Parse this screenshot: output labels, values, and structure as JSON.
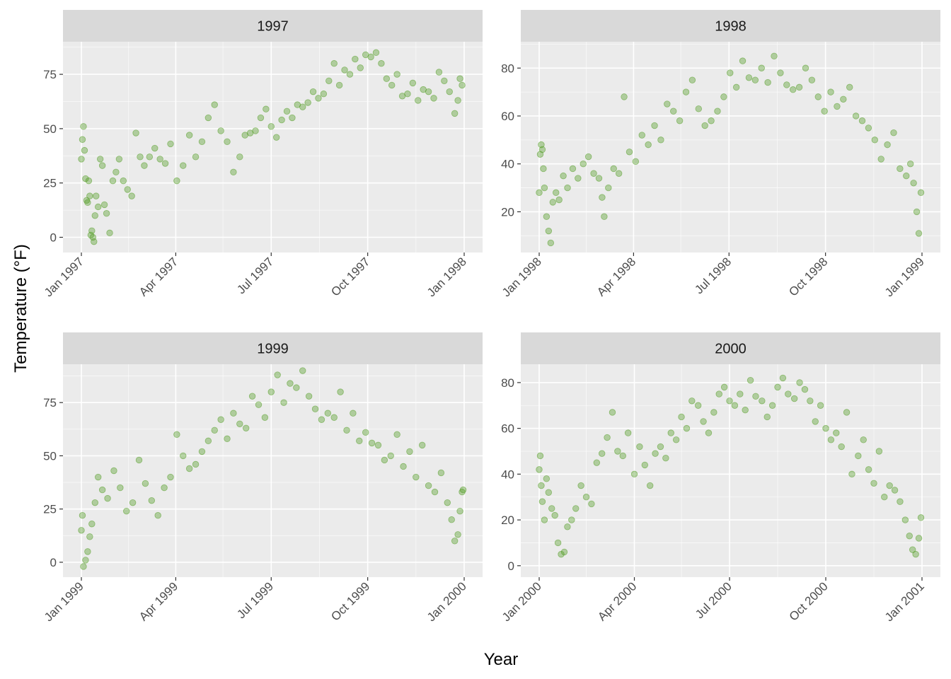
{
  "labels": {
    "x_title": "Year",
    "y_title": "Temperature (°F)"
  },
  "colors": {
    "point": "#4f9a1f",
    "panel": "#ebebeb",
    "strip": "#d9d9d9",
    "grid": "#ffffff"
  },
  "chart_data": [
    {
      "type": "scatter",
      "title": "1997",
      "xlabel": "Year",
      "ylabel": "Temperature (°F)",
      "xlim": [
        "1997-01-01",
        "1998-01-01"
      ],
      "x_ticks": [
        "1997-01-01",
        "1997-04-01",
        "1997-07-01",
        "1997-10-01",
        "1998-01-01"
      ],
      "x_tick_labels": [
        "Jan 1997",
        "Apr 1997",
        "Jul 1997",
        "Oct 1997",
        "Jan 1998"
      ],
      "ylim": [
        -7,
        90
      ],
      "y_ticks": [
        0,
        25,
        50,
        75
      ],
      "grid": true,
      "series": [
        {
          "x": [
            "1997-01-01",
            "1997-01-02",
            "1997-01-03",
            "1997-01-04",
            "1997-01-05",
            "1997-01-06",
            "1997-01-07",
            "1997-01-08",
            "1997-01-09",
            "1997-01-10",
            "1997-01-11",
            "1997-01-12",
            "1997-01-13",
            "1997-01-14",
            "1997-01-15",
            "1997-01-17",
            "1997-01-19",
            "1997-01-21",
            "1997-01-23",
            "1997-01-25",
            "1997-01-28",
            "1997-01-31",
            "1997-02-03",
            "1997-02-06",
            "1997-02-10",
            "1997-02-14",
            "1997-02-18",
            "1997-02-22",
            "1997-02-26",
            "1997-03-02",
            "1997-03-07",
            "1997-03-12",
            "1997-03-17",
            "1997-03-22",
            "1997-03-27",
            "1997-04-02",
            "1997-04-08",
            "1997-04-14",
            "1997-04-20",
            "1997-04-26",
            "1997-05-02",
            "1997-05-08",
            "1997-05-14",
            "1997-05-20",
            "1997-05-26",
            "1997-06-01",
            "1997-06-06",
            "1997-06-11",
            "1997-06-16",
            "1997-06-21",
            "1997-06-26",
            "1997-07-01",
            "1997-07-06",
            "1997-07-11",
            "1997-07-16",
            "1997-07-21",
            "1997-07-26",
            "1997-07-31",
            "1997-08-05",
            "1997-08-10",
            "1997-08-15",
            "1997-08-20",
            "1997-08-25",
            "1997-08-30",
            "1997-09-04",
            "1997-09-09",
            "1997-09-14",
            "1997-09-19",
            "1997-09-24",
            "1997-09-29",
            "1997-10-04",
            "1997-10-09",
            "1997-10-14",
            "1997-10-19",
            "1997-10-24",
            "1997-10-29",
            "1997-11-03",
            "1997-11-08",
            "1997-11-13",
            "1997-11-18",
            "1997-11-23",
            "1997-11-28",
            "1997-12-03",
            "1997-12-08",
            "1997-12-13",
            "1997-12-18",
            "1997-12-23",
            "1997-12-26",
            "1997-12-28",
            "1997-12-30"
          ],
          "y": [
            36,
            45,
            51,
            40,
            27,
            17,
            16,
            26,
            19,
            1,
            3,
            0,
            -2,
            10,
            19,
            14,
            36,
            33,
            15,
            11,
            2,
            26,
            30,
            36,
            26,
            22,
            19,
            48,
            37,
            33,
            37,
            41,
            36,
            34,
            43,
            26,
            33,
            47,
            37,
            44,
            55,
            61,
            49,
            44,
            30,
            37,
            47,
            48,
            49,
            55,
            59,
            51,
            46,
            54,
            58,
            55,
            61,
            60,
            62,
            67,
            64,
            66,
            72,
            80,
            70,
            77,
            75,
            82,
            78,
            84,
            83,
            85,
            80,
            73,
            70,
            75,
            65,
            66,
            71,
            63,
            68,
            67,
            64,
            76,
            72,
            67,
            57,
            63,
            73,
            70
          ]
        }
      ]
    },
    {
      "type": "scatter",
      "title": "1998",
      "xlabel": "Year",
      "ylabel": "Temperature (°F)",
      "xlim": [
        "1998-01-01",
        "1999-01-01"
      ],
      "x_ticks": [
        "1998-01-01",
        "1998-04-01",
        "1998-07-01",
        "1998-10-01",
        "1999-01-01"
      ],
      "x_tick_labels": [
        "Jan 1998",
        "Apr 1998",
        "Jul 1998",
        "Oct 1998",
        "Jan 1999"
      ],
      "ylim": [
        3,
        91
      ],
      "y_ticks": [
        20,
        40,
        60,
        80
      ],
      "grid": true,
      "series": [
        {
          "x": [
            "1998-01-01",
            "1998-01-02",
            "1998-01-03",
            "1998-01-04",
            "1998-01-05",
            "1998-01-06",
            "1998-01-08",
            "1998-01-10",
            "1998-01-12",
            "1998-01-14",
            "1998-01-17",
            "1998-01-20",
            "1998-01-24",
            "1998-01-28",
            "1998-02-02",
            "1998-02-07",
            "1998-02-12",
            "1998-02-17",
            "1998-02-22",
            "1998-02-27",
            "1998-03-02",
            "1998-03-04",
            "1998-03-08",
            "1998-03-13",
            "1998-03-18",
            "1998-03-23",
            "1998-03-28",
            "1998-04-03",
            "1998-04-09",
            "1998-04-15",
            "1998-04-21",
            "1998-04-27",
            "1998-05-03",
            "1998-05-09",
            "1998-05-15",
            "1998-05-21",
            "1998-05-27",
            "1998-06-02",
            "1998-06-08",
            "1998-06-14",
            "1998-06-20",
            "1998-06-26",
            "1998-07-02",
            "1998-07-08",
            "1998-07-14",
            "1998-07-20",
            "1998-07-26",
            "1998-08-01",
            "1998-08-07",
            "1998-08-13",
            "1998-08-19",
            "1998-08-25",
            "1998-08-31",
            "1998-09-06",
            "1998-09-12",
            "1998-09-18",
            "1998-09-24",
            "1998-09-30",
            "1998-10-06",
            "1998-10-12",
            "1998-10-18",
            "1998-10-24",
            "1998-10-30",
            "1998-11-05",
            "1998-11-11",
            "1998-11-17",
            "1998-11-23",
            "1998-11-29",
            "1998-12-05",
            "1998-12-11",
            "1998-12-17",
            "1998-12-21",
            "1998-12-24",
            "1998-12-27",
            "1998-12-29",
            "1998-12-31"
          ],
          "y": [
            28,
            44,
            48,
            46,
            38,
            30,
            18,
            12,
            7,
            24,
            28,
            25,
            35,
            30,
            38,
            34,
            40,
            43,
            36,
            34,
            26,
            18,
            30,
            38,
            36,
            68,
            45,
            41,
            52,
            48,
            56,
            50,
            65,
            62,
            58,
            70,
            75,
            63,
            56,
            58,
            62,
            68,
            78,
            72,
            83,
            76,
            75,
            80,
            74,
            85,
            78,
            73,
            71,
            72,
            80,
            75,
            68,
            62,
            70,
            64,
            67,
            72,
            60,
            58,
            55,
            50,
            42,
            48,
            53,
            38,
            35,
            40,
            32,
            20,
            11,
            28
          ]
        }
      ]
    },
    {
      "type": "scatter",
      "title": "1999",
      "xlabel": "Year",
      "ylabel": "Temperature (°F)",
      "xlim": [
        "1999-01-01",
        "2000-01-01"
      ],
      "x_ticks": [
        "1999-01-01",
        "1999-04-01",
        "1999-07-01",
        "1999-10-01",
        "2000-01-01"
      ],
      "x_tick_labels": [
        "Jan 1999",
        "Apr 1999",
        "Jul 1999",
        "Oct 1999",
        "Jan 2000"
      ],
      "ylim": [
        -7,
        93
      ],
      "y_ticks": [
        0,
        25,
        50,
        75
      ],
      "grid": true,
      "series": [
        {
          "x": [
            "1999-01-01",
            "1999-01-02",
            "1999-01-03",
            "1999-01-05",
            "1999-01-07",
            "1999-01-09",
            "1999-01-11",
            "1999-01-14",
            "1999-01-17",
            "1999-01-21",
            "1999-01-26",
            "1999-02-01",
            "1999-02-07",
            "1999-02-13",
            "1999-02-19",
            "1999-02-25",
            "1999-03-03",
            "1999-03-09",
            "1999-03-15",
            "1999-03-21",
            "1999-03-27",
            "1999-04-02",
            "1999-04-08",
            "1999-04-14",
            "1999-04-20",
            "1999-04-26",
            "1999-05-02",
            "1999-05-08",
            "1999-05-14",
            "1999-05-20",
            "1999-05-26",
            "1999-06-01",
            "1999-06-07",
            "1999-06-13",
            "1999-06-19",
            "1999-06-25",
            "1999-07-01",
            "1999-07-07",
            "1999-07-13",
            "1999-07-19",
            "1999-07-25",
            "1999-07-31",
            "1999-08-06",
            "1999-08-12",
            "1999-08-18",
            "1999-08-24",
            "1999-08-30",
            "1999-09-05",
            "1999-09-11",
            "1999-09-17",
            "1999-09-23",
            "1999-09-29",
            "1999-10-05",
            "1999-10-11",
            "1999-10-17",
            "1999-10-23",
            "1999-10-29",
            "1999-11-04",
            "1999-11-10",
            "1999-11-16",
            "1999-11-22",
            "1999-11-28",
            "1999-12-04",
            "1999-12-10",
            "1999-12-16",
            "1999-12-20",
            "1999-12-23",
            "1999-12-26",
            "1999-12-28",
            "1999-12-30",
            "1999-12-31"
          ],
          "y": [
            15,
            22,
            -2,
            1,
            5,
            12,
            18,
            28,
            40,
            34,
            30,
            43,
            35,
            24,
            28,
            48,
            37,
            29,
            22,
            35,
            40,
            60,
            50,
            44,
            46,
            52,
            57,
            62,
            67,
            58,
            70,
            65,
            63,
            78,
            74,
            68,
            80,
            88,
            75,
            84,
            82,
            90,
            78,
            72,
            67,
            70,
            68,
            80,
            62,
            70,
            57,
            61,
            56,
            55,
            48,
            50,
            60,
            45,
            52,
            40,
            55,
            36,
            33,
            42,
            28,
            20,
            10,
            13,
            24,
            33,
            34
          ]
        }
      ]
    },
    {
      "type": "scatter",
      "title": "2000",
      "xlabel": "Year",
      "ylabel": "Temperature (°F)",
      "xlim": [
        "2000-01-01",
        "2001-01-01"
      ],
      "x_ticks": [
        "2000-01-01",
        "2000-04-01",
        "2000-07-01",
        "2000-10-01",
        "2001-01-01"
      ],
      "x_tick_labels": [
        "Jan 2000",
        "Apr 2000",
        "Jul 2000",
        "Oct 2000",
        "Jan 2001"
      ],
      "ylim": [
        -5,
        88
      ],
      "y_ticks": [
        0,
        20,
        40,
        60,
        80
      ],
      "grid": true,
      "series": [
        {
          "x": [
            "2000-01-01",
            "2000-01-02",
            "2000-01-03",
            "2000-01-04",
            "2000-01-06",
            "2000-01-08",
            "2000-01-10",
            "2000-01-13",
            "2000-01-16",
            "2000-01-19",
            "2000-01-22",
            "2000-01-25",
            "2000-01-28",
            "2000-02-01",
            "2000-02-05",
            "2000-02-10",
            "2000-02-15",
            "2000-02-20",
            "2000-02-25",
            "2000-03-01",
            "2000-03-06",
            "2000-03-11",
            "2000-03-16",
            "2000-03-21",
            "2000-03-26",
            "2000-04-01",
            "2000-04-06",
            "2000-04-11",
            "2000-04-16",
            "2000-04-21",
            "2000-04-26",
            "2000-05-01",
            "2000-05-06",
            "2000-05-11",
            "2000-05-16",
            "2000-05-21",
            "2000-05-26",
            "2000-06-01",
            "2000-06-06",
            "2000-06-11",
            "2000-06-16",
            "2000-06-21",
            "2000-06-26",
            "2000-07-01",
            "2000-07-06",
            "2000-07-11",
            "2000-07-16",
            "2000-07-21",
            "2000-07-26",
            "2000-08-01",
            "2000-08-06",
            "2000-08-11",
            "2000-08-16",
            "2000-08-21",
            "2000-08-26",
            "2000-09-01",
            "2000-09-06",
            "2000-09-11",
            "2000-09-16",
            "2000-09-21",
            "2000-09-26",
            "2000-10-01",
            "2000-10-06",
            "2000-10-11",
            "2000-10-16",
            "2000-10-21",
            "2000-10-26",
            "2000-11-01",
            "2000-11-06",
            "2000-11-11",
            "2000-11-16",
            "2000-11-21",
            "2000-11-26",
            "2000-12-01",
            "2000-12-06",
            "2000-12-11",
            "2000-12-16",
            "2000-12-20",
            "2000-12-23",
            "2000-12-26",
            "2000-12-29",
            "2000-12-31"
          ],
          "y": [
            42,
            48,
            35,
            28,
            20,
            38,
            32,
            25,
            22,
            10,
            5,
            6,
            17,
            20,
            25,
            35,
            30,
            27,
            45,
            49,
            56,
            67,
            50,
            48,
            58,
            40,
            52,
            44,
            35,
            49,
            52,
            47,
            58,
            55,
            65,
            60,
            72,
            70,
            63,
            58,
            67,
            75,
            78,
            72,
            70,
            75,
            68,
            81,
            74,
            72,
            65,
            70,
            78,
            82,
            75,
            73,
            80,
            77,
            72,
            63,
            70,
            60,
            55,
            58,
            52,
            67,
            40,
            48,
            55,
            42,
            36,
            50,
            30,
            35,
            33,
            28,
            20,
            13,
            7,
            5,
            12,
            21
          ]
        }
      ]
    }
  ]
}
